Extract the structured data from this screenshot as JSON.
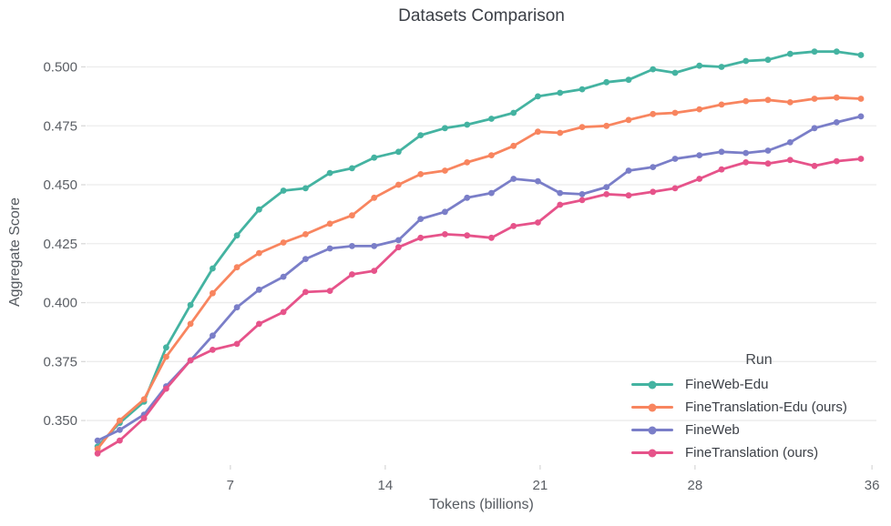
{
  "chart_data": {
    "type": "line",
    "title": "Datasets Comparison",
    "xlabel": "Tokens (billions)",
    "ylabel": "Aggregate Score",
    "legend_title": "Run",
    "legend_position": "bottom-right",
    "grid": "horizontal",
    "marker": "circle",
    "xlim": [
      0.5,
      36.2
    ],
    "ylim": [
      0.3315,
      0.511
    ],
    "xticks": [
      7,
      14,
      21,
      28,
      36
    ],
    "yticks": [
      0.35,
      0.375,
      0.4,
      0.425,
      0.45,
      0.475,
      0.5
    ],
    "x": [
      1.0,
      2.0,
      3.1,
      4.1,
      5.2,
      6.2,
      7.3,
      8.3,
      9.4,
      10.4,
      11.5,
      12.5,
      13.5,
      14.6,
      15.6,
      16.7,
      17.7,
      18.8,
      19.8,
      20.9,
      21.9,
      22.9,
      24.0,
      25.0,
      26.1,
      27.1,
      28.2,
      29.2,
      30.3,
      31.3,
      32.3,
      33.4,
      34.4,
      35.5
    ],
    "series": [
      {
        "name": "FineWeb-Edu",
        "color": "#44b3a1",
        "values": [
          0.339,
          0.349,
          0.358,
          0.381,
          0.399,
          0.4145,
          0.4285,
          0.4395,
          0.4475,
          0.4485,
          0.455,
          0.457,
          0.4615,
          0.464,
          0.471,
          0.474,
          0.4755,
          0.478,
          0.4805,
          0.4875,
          0.489,
          0.4905,
          0.4935,
          0.4945,
          0.499,
          0.4975,
          0.5005,
          0.5,
          0.5025,
          0.503,
          0.5055,
          0.5065,
          0.5065,
          0.505
        ]
      },
      {
        "name": "FineTranslation-Edu (ours)",
        "color": "#f8855f",
        "values": [
          0.338,
          0.35,
          0.359,
          0.377,
          0.391,
          0.404,
          0.415,
          0.421,
          0.4255,
          0.429,
          0.4335,
          0.437,
          0.4445,
          0.45,
          0.4545,
          0.456,
          0.4595,
          0.4625,
          0.4665,
          0.4725,
          0.472,
          0.4745,
          0.475,
          0.4775,
          0.48,
          0.4805,
          0.482,
          0.484,
          0.4855,
          0.486,
          0.485,
          0.4865,
          0.487,
          0.4865
        ]
      },
      {
        "name": "FineWeb",
        "color": "#7a7ec8",
        "values": [
          0.3415,
          0.346,
          0.3525,
          0.3645,
          0.3755,
          0.386,
          0.398,
          0.4055,
          0.411,
          0.4185,
          0.423,
          0.424,
          0.424,
          0.4265,
          0.4355,
          0.4385,
          0.4445,
          0.4465,
          0.4525,
          0.4515,
          0.4465,
          0.446,
          0.449,
          0.456,
          0.4575,
          0.461,
          0.4625,
          0.464,
          0.4635,
          0.4645,
          0.468,
          0.474,
          0.4765,
          0.479
        ]
      },
      {
        "name": "FineTranslation (ours)",
        "color": "#e6538a",
        "values": [
          0.336,
          0.3415,
          0.351,
          0.3635,
          0.3755,
          0.38,
          0.3825,
          0.391,
          0.396,
          0.4045,
          0.405,
          0.412,
          0.4135,
          0.4235,
          0.4275,
          0.429,
          0.4285,
          0.4275,
          0.4325,
          0.434,
          0.4415,
          0.4435,
          0.446,
          0.4455,
          0.447,
          0.4485,
          0.4525,
          0.4565,
          0.4595,
          0.459,
          0.4605,
          0.458,
          0.46,
          0.461
        ]
      }
    ],
    "style": {
      "grid_color": "#ececec",
      "tick_color": "#d9d9d9",
      "tick_label_color": "#5a5e64",
      "line_width": 2.8,
      "marker_radius": 3.4
    }
  }
}
